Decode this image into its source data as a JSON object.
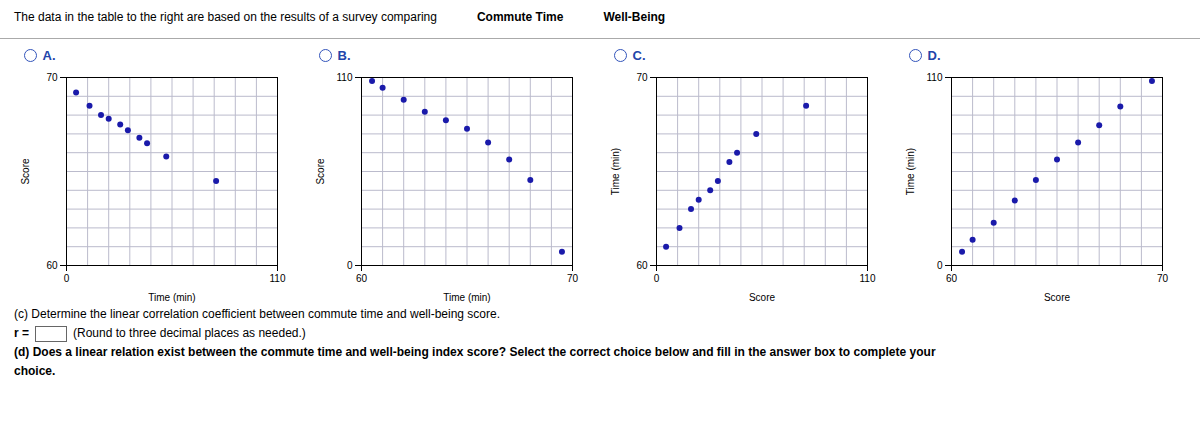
{
  "chart_data": [
    {
      "type": "scatter",
      "title": "A.",
      "xlabel": "Time (min)",
      "ylabel": "Score",
      "x": [
        5,
        12,
        18,
        22,
        28,
        32,
        38,
        42,
        52,
        78
      ],
      "values": [
        69.2,
        68.5,
        68.0,
        67.8,
        67.5,
        67.2,
        66.8,
        66.5,
        65.8,
        64.5
      ],
      "color": "#1a1aaa",
      "xlim": [
        0,
        110
      ],
      "ylim": [
        60,
        70
      ],
      "xticks": [
        0,
        110
      ],
      "yticks": [
        60,
        70
      ],
      "grid": true,
      "annotations": [
        "The data in the table to the right are based on the results of a survey comparing",
        "Commute Time",
        "Well-Being",
        "(c) Determine the linear correlation coefficient between commute time and well-being score.",
        "r =",
        "(Round to three decimal places as needed.)",
        "(d) Does a linear relation exist between the commute time and well-being index score? Select the correct choice below and fill in the answer box to complete your",
        "choice."
      ]
    },
    {
      "type": "scatter",
      "title": "B.",
      "xlabel": "Time (min)",
      "ylabel": "Score",
      "x": [
        60.5,
        61,
        62,
        63,
        64,
        65,
        66,
        67,
        68,
        69.5
      ],
      "values": [
        108,
        104,
        97,
        90,
        85,
        80,
        72,
        62,
        50,
        8
      ],
      "color": "#1a1aaa",
      "xlim": [
        60,
        70
      ],
      "ylim": [
        0,
        110
      ],
      "xticks": [
        60,
        70
      ],
      "yticks": [
        0,
        110
      ],
      "grid": true
    },
    {
      "type": "scatter",
      "title": "C.",
      "xlabel": "Score",
      "ylabel": "Time (min)",
      "x": [
        5,
        12,
        18,
        22,
        28,
        32,
        38,
        42,
        52,
        78
      ],
      "values": [
        61,
        62,
        63,
        63.5,
        64,
        64.5,
        65.5,
        66,
        67,
        68.5
      ],
      "color": "#1a1aaa",
      "xlim": [
        0,
        110
      ],
      "ylim": [
        60,
        70
      ],
      "xticks": [
        0,
        110
      ],
      "yticks": [
        60,
        70
      ],
      "grid": true
    },
    {
      "type": "scatter",
      "title": "D.",
      "xlabel": "Score",
      "ylabel": "Time (min)",
      "x": [
        60.5,
        61,
        62,
        63,
        64,
        65,
        66,
        67,
        68,
        69.5
      ],
      "values": [
        8,
        15,
        25,
        38,
        50,
        62,
        72,
        82,
        93,
        108
      ],
      "color": "#1a1aaa",
      "xlim": [
        60,
        70
      ],
      "ylim": [
        0,
        110
      ],
      "xticks": [
        60,
        70
      ],
      "yticks": [
        0,
        110
      ],
      "grid": true
    }
  ]
}
